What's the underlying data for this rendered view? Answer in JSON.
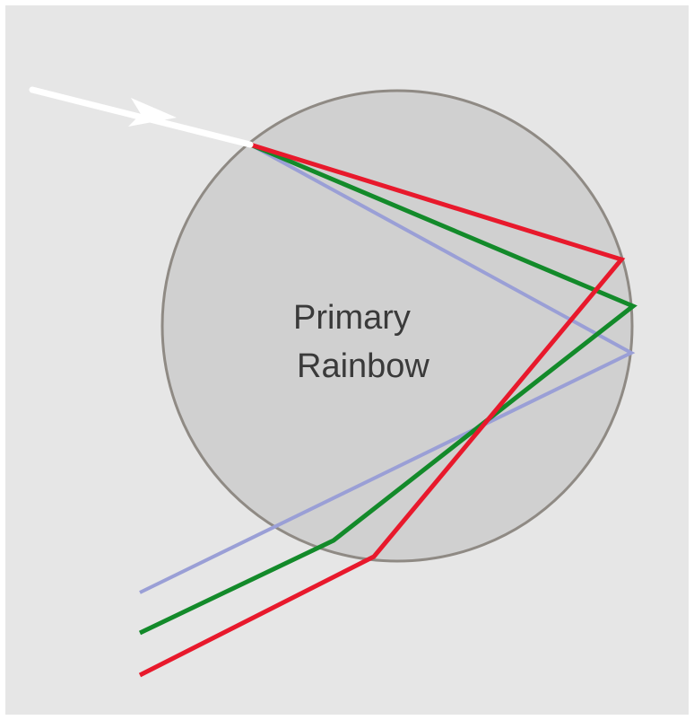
{
  "diagram": {
    "label_line1": "Primary",
    "label_line2": "Rainbow"
  },
  "colors": {
    "background": "#e6e6e6",
    "droplet_fill": "#d0d0d0",
    "droplet_stroke": "#8f8a84",
    "incoming_ray": "#ffffff",
    "red_ray": "#e8192c",
    "green_ray": "#138a2a",
    "violet_ray": "#9a9fd6"
  },
  "rays": [
    {
      "name": "red",
      "color_key": "red_ray"
    },
    {
      "name": "green",
      "color_key": "green_ray"
    },
    {
      "name": "violet",
      "color_key": "violet_ray"
    }
  ]
}
